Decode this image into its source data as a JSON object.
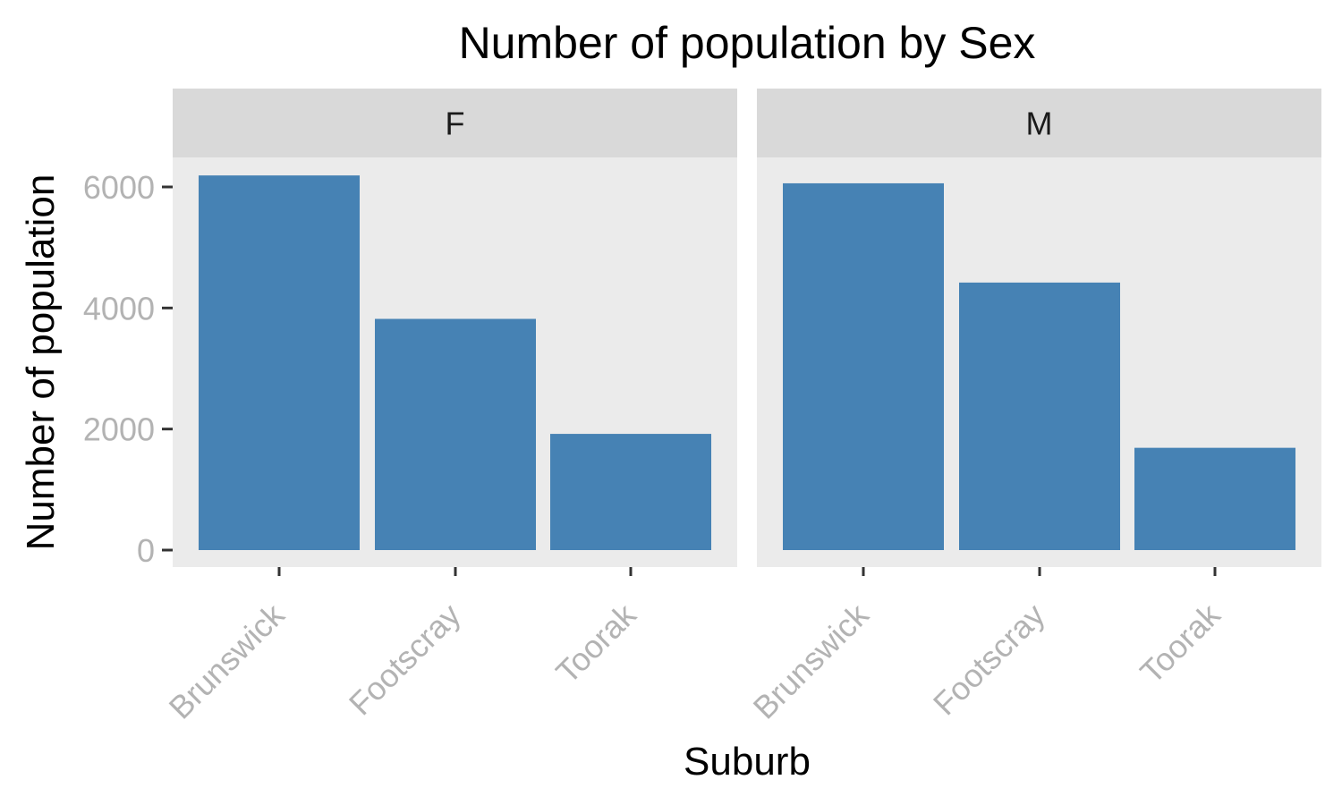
{
  "chart_data": {
    "type": "bar",
    "title": "Number of population by Sex",
    "xlabel": "Suburb",
    "ylabel": "Number of population",
    "ylim": [
      0,
      6500
    ],
    "yticks": [
      0,
      2000,
      4000,
      6000
    ],
    "categories": [
      "Brunswick",
      "Footscray",
      "Toorak"
    ],
    "facets": [
      {
        "label": "F",
        "values": [
          6190,
          3820,
          1920
        ]
      },
      {
        "label": "M",
        "values": [
          6060,
          4420,
          1690
        ]
      }
    ],
    "grid": false,
    "legend": "none",
    "colors": {
      "bar": "#4682B4",
      "panel_bg": "#EBEBEB",
      "strip_bg": "#D9D9D9",
      "tick_label": "#B3B3B3",
      "tick_mark": "#333333"
    }
  }
}
